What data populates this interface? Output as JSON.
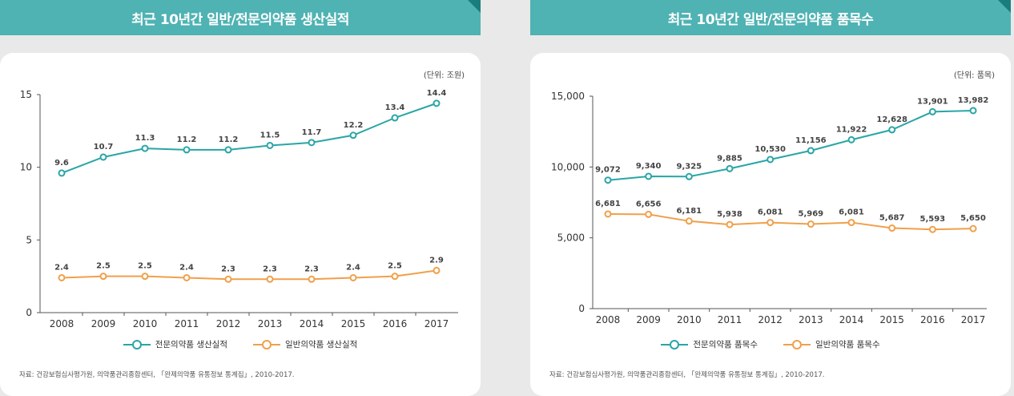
{
  "left_panel": {
    "title": "최근 10년간 일반/전문의약품 생산실적",
    "unit": "(단위: 조원)",
    "source": "자료: 건강보험심사평가원, 의약품관리종합센터, 「완제의약품 유통정보 통계집」, 2010-2017."
  },
  "right_panel": {
    "title": "최근 10년간 일반/전문의약품 품목수",
    "unit": "(단위: 품목)",
    "source": "자료: 건강보험심사평가원, 의약품관리종합센터, 「완제의약품 유통정보 통계집」, 2010-2017."
  },
  "colors": {
    "header": "#4fb2b3",
    "teal_series": "#2aa5a6",
    "orange_series": "#f0a04b"
  },
  "chart_data": [
    {
      "type": "line",
      "title": "최근 10년간 일반/전문의약품 생산실적",
      "x": [
        "2008",
        "2009",
        "2010",
        "2011",
        "2012",
        "2013",
        "2014",
        "2015",
        "2016",
        "2017"
      ],
      "ylim": [
        0,
        15
      ],
      "yticks": [
        0,
        5,
        10,
        15
      ],
      "ytick_labels": [
        "0",
        "5",
        "10",
        "15"
      ],
      "series": [
        {
          "name": "전문의약품 생산실적",
          "color": "#2aa5a6",
          "values": [
            9.6,
            10.7,
            11.3,
            11.2,
            11.2,
            11.5,
            11.7,
            12.2,
            13.4,
            14.4
          ],
          "labels": [
            "9.6",
            "10.7",
            "11.3",
            "11.2",
            "11.2",
            "11.5",
            "11.7",
            "12.2",
            "13.4",
            "14.4"
          ]
        },
        {
          "name": "일반의약품 생산실적",
          "color": "#f0a04b",
          "values": [
            2.4,
            2.5,
            2.5,
            2.4,
            2.3,
            2.3,
            2.3,
            2.4,
            2.5,
            2.9
          ],
          "labels": [
            "2.4",
            "2.5",
            "2.5",
            "2.4",
            "2.3",
            "2.3",
            "2.3",
            "2.4",
            "2.5",
            "2.9"
          ]
        }
      ],
      "legend_position": "bottom"
    },
    {
      "type": "line",
      "title": "최근 10년간 일반/전문의약품 품목수",
      "x": [
        "2008",
        "2009",
        "2010",
        "2011",
        "2012",
        "2013",
        "2014",
        "2015",
        "2016",
        "2017"
      ],
      "ylim": [
        0,
        15000
      ],
      "yticks": [
        0,
        5000,
        10000,
        15000
      ],
      "ytick_labels": [
        "0",
        "5,000",
        "10,000",
        "15,000"
      ],
      "series": [
        {
          "name": "전문의약품 품목수",
          "color": "#2aa5a6",
          "values": [
            9072,
            9340,
            9325,
            9885,
            10530,
            11156,
            11922,
            12628,
            13901,
            13982
          ],
          "labels": [
            "9,072",
            "9,340",
            "9,325",
            "9,885",
            "10,530",
            "11,156",
            "11,922",
            "12,628",
            "13,901",
            "13,982"
          ]
        },
        {
          "name": "일반의약품 품목수",
          "color": "#f0a04b",
          "values": [
            6681,
            6656,
            6181,
            5938,
            6081,
            5969,
            6081,
            5687,
            5593,
            5650
          ],
          "labels": [
            "6,681",
            "6,656",
            "6,181",
            "5,938",
            "6,081",
            "5,969",
            "6,081",
            "5,687",
            "5,593",
            "5,650"
          ]
        }
      ],
      "legend_position": "bottom"
    }
  ]
}
